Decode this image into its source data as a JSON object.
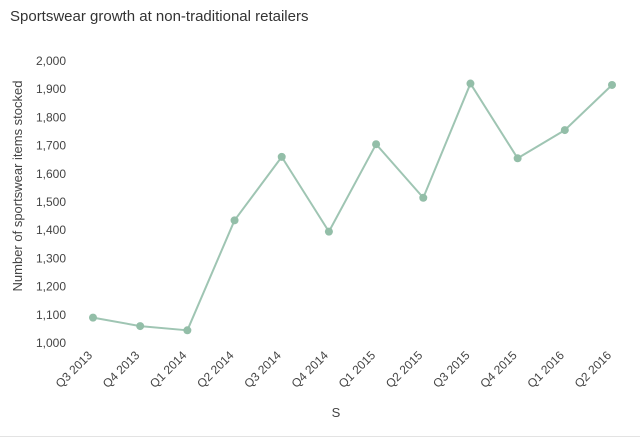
{
  "chart_data": {
    "type": "line",
    "title": "Sportswear growth at non-traditional retailers",
    "xlabel": "S",
    "ylabel": "Number of sportswear items stocked",
    "categories": [
      "Q3 2013",
      "Q4 2013",
      "Q1 2014",
      "Q2 2014",
      "Q3 2014",
      "Q4 2014",
      "Q1 2015",
      "Q2 2015",
      "Q3 2015",
      "Q4 2015",
      "Q1 2016",
      "Q2 2016"
    ],
    "series": [
      {
        "values": [
          1090,
          1060,
          1045,
          1435,
          1660,
          1395,
          1705,
          1515,
          1920,
          1655,
          1755,
          1915
        ]
      }
    ],
    "ylim": [
      1000,
      2000
    ],
    "yticks": [
      "1,000",
      "1,100",
      "1,200",
      "1,300",
      "1,400",
      "1,500",
      "1,600",
      "1,700",
      "1,800",
      "1,900",
      "2,000"
    ],
    "grid": false,
    "line_color": "#9fc5b3",
    "marker_color": "#93bea8"
  }
}
